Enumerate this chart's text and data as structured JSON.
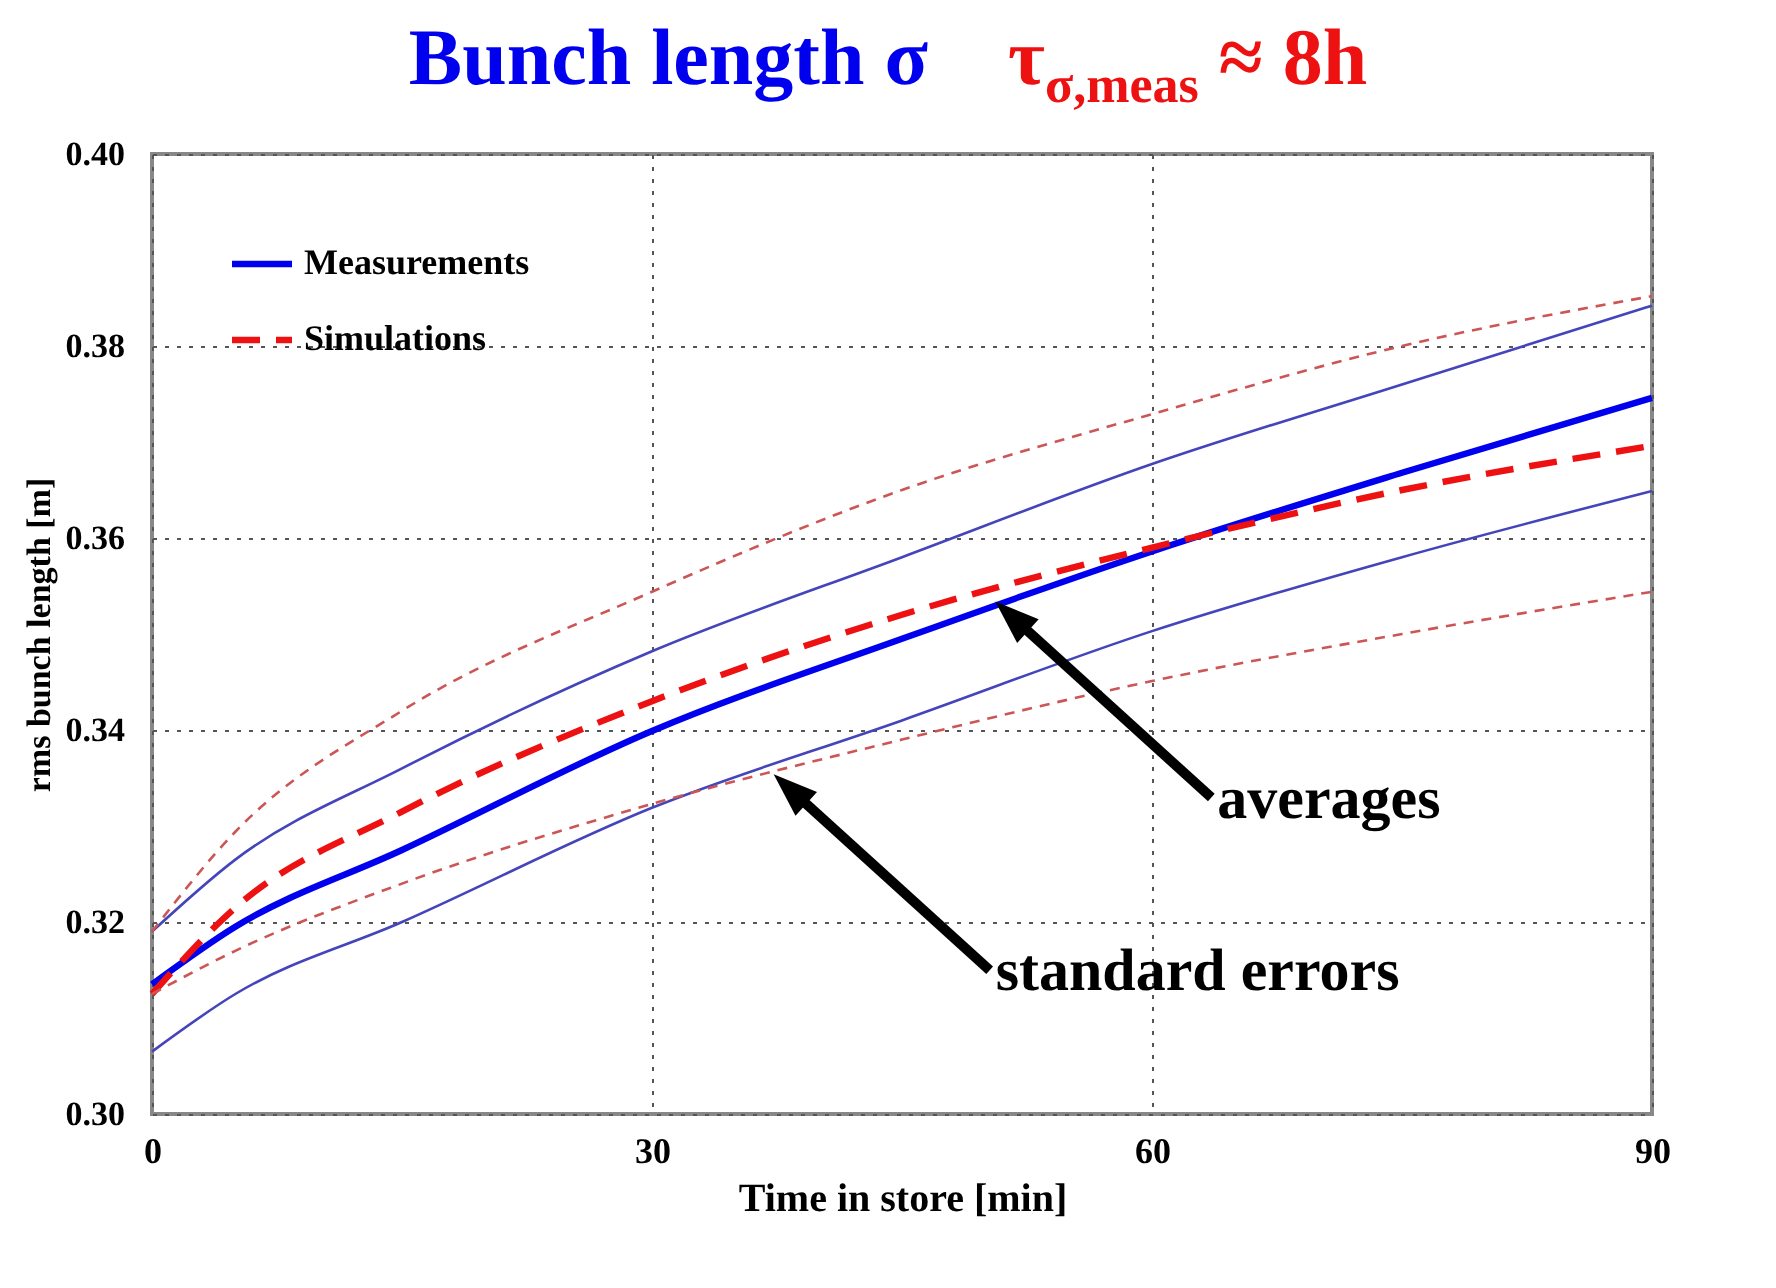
{
  "chart_data": {
    "type": "line",
    "title": "Bunch length σ",
    "subtitle": "τ$_{σ,meas}$ ≈ 8h",
    "xlabel": "Time in store [min]",
    "ylabel": "rms bunch length [m]",
    "x": [
      0,
      5,
      15,
      30,
      45,
      60,
      75,
      90
    ],
    "series": [
      {
        "name": "Measurements",
        "color": "#0000ee",
        "line_style": "solid",
        "values": [
          0.3135,
          0.3195,
          0.3275,
          0.3399,
          0.3495,
          0.3586,
          0.3668,
          0.3746
        ]
      },
      {
        "name": "Simulations",
        "color": "#ee1111",
        "line_style": "dashed",
        "values": [
          0.3125,
          0.3215,
          0.3315,
          0.343,
          0.352,
          0.359,
          0.365,
          0.3696
        ]
      },
      {
        "color": "#4444bb",
        "line_style": "solid",
        "values": [
          0.319,
          0.3265,
          0.336,
          0.3482,
          0.358,
          0.3677,
          0.376,
          0.3842
        ]
      },
      {
        "color": "#4444bb",
        "line_style": "solid",
        "values": [
          0.3065,
          0.3125,
          0.32,
          0.3319,
          0.341,
          0.3503,
          0.358,
          0.3649
        ]
      },
      {
        "color": "#cc5555",
        "line_style": "dashed",
        "values": [
          0.319,
          0.3294,
          0.342,
          0.3544,
          0.365,
          0.3729,
          0.38,
          0.3852
        ]
      },
      {
        "color": "#cc5555",
        "line_style": "dashed",
        "values": [
          0.3125,
          0.317,
          0.324,
          0.3323,
          0.339,
          0.3451,
          0.35,
          0.3544
        ]
      }
    ],
    "xlim": [
      0,
      90
    ],
    "xticks": [
      0,
      30,
      60,
      90
    ],
    "ylim": [
      0.3,
      0.4
    ],
    "yticks": [
      {
        "value": 0.3,
        "label": "0.30"
      },
      {
        "value": 0.32,
        "label": "0.32"
      },
      {
        "value": 0.34,
        "label": "0.34"
      },
      {
        "value": 0.36,
        "label": "0.36"
      },
      {
        "value": 0.38,
        "label": "0.38"
      },
      {
        "value": 0.4,
        "label": "0.40"
      }
    ],
    "grid": true,
    "legend": "top left",
    "annotations": [
      {
        "text": "averages",
        "x": 51.8,
        "y": 0.3513
      },
      {
        "text": "standard errors",
        "x": 38.5,
        "y": 0.3333
      }
    ]
  }
}
